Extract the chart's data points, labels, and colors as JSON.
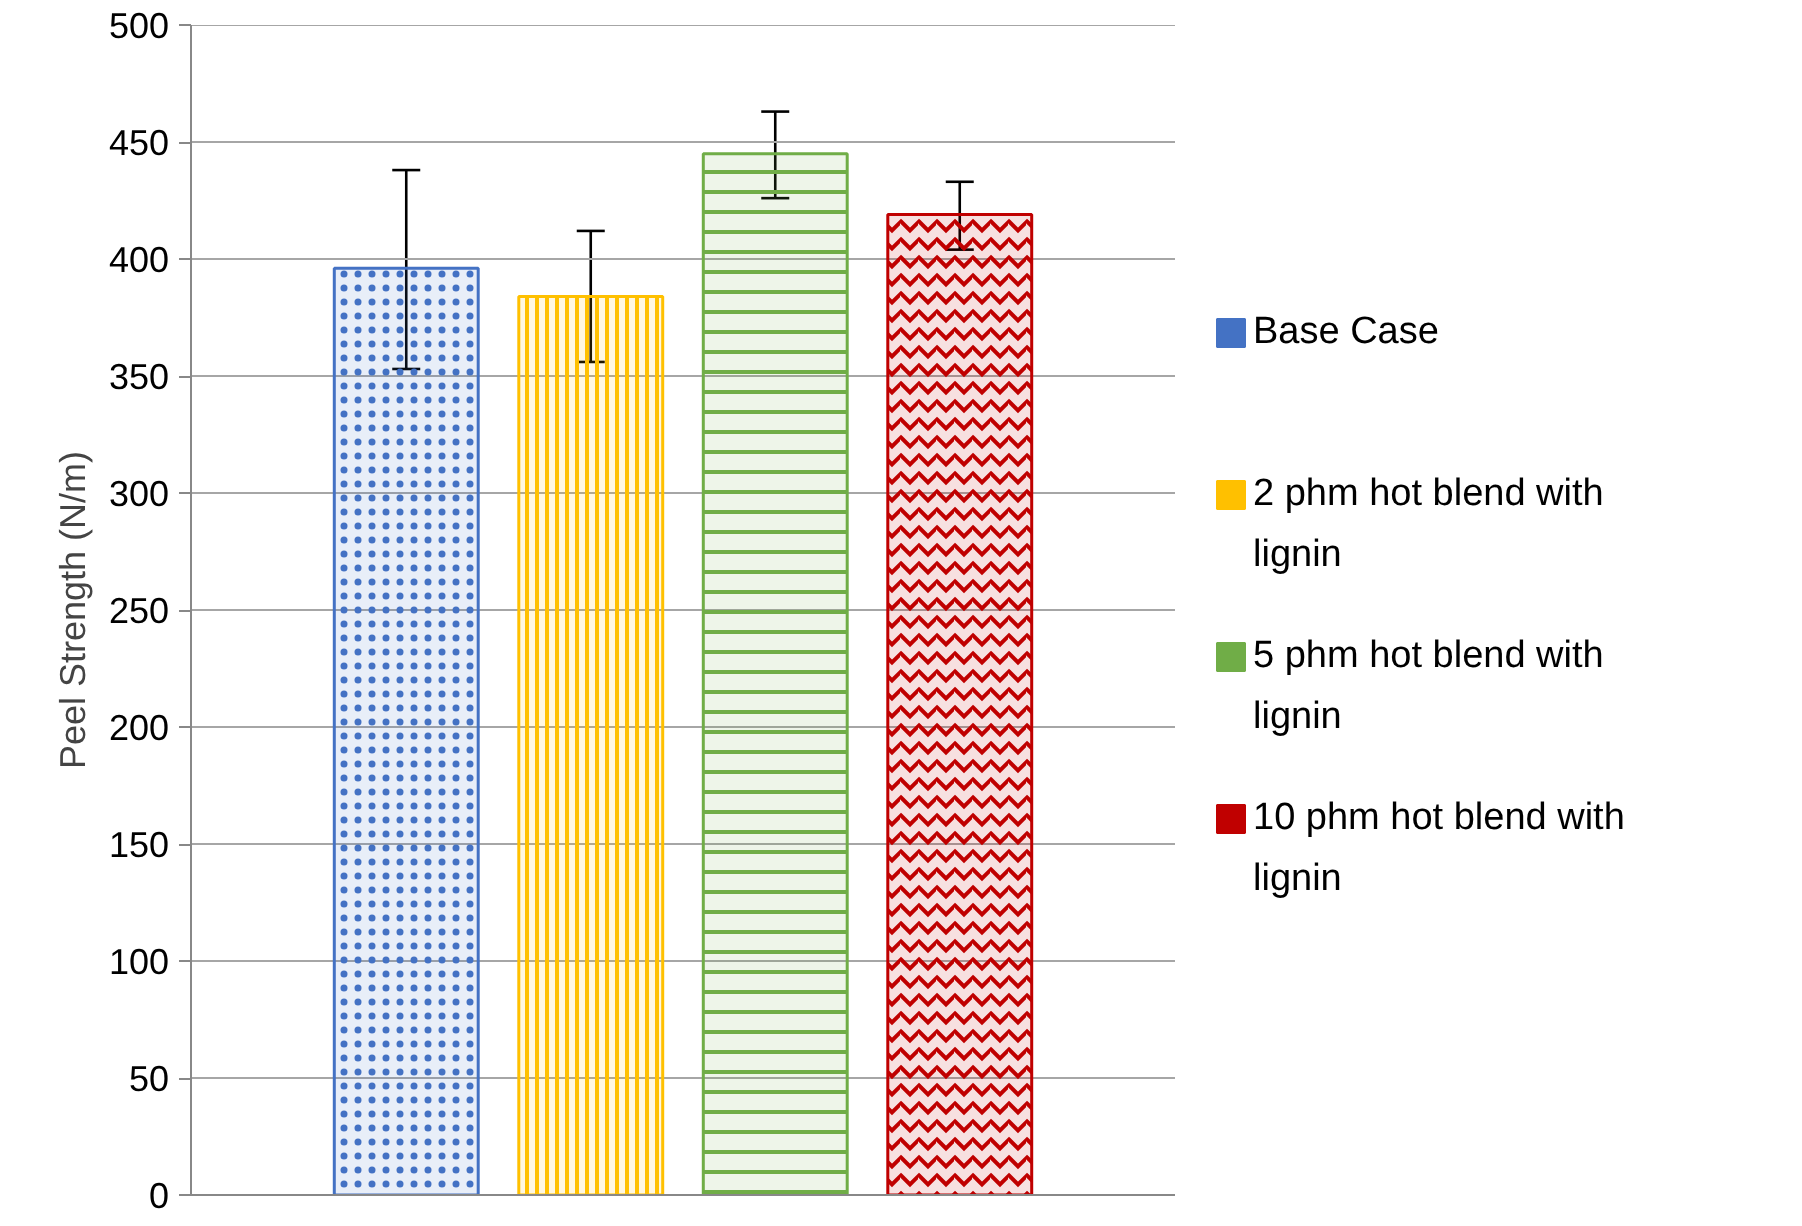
{
  "chart_data": {
    "type": "bar",
    "ylabel": "Peel Strength (N/m)",
    "categories": [
      null
    ],
    "series": [
      {
        "name": "Base Case",
        "color": "#4472c4",
        "values": [
          396
        ],
        "errors": [
          [
            353,
            438
          ]
        ]
      },
      {
        "name": "2 phm hot blend with lignin",
        "color": "#ffc000",
        "values": [
          384
        ],
        "errors": [
          [
            356,
            412
          ]
        ]
      },
      {
        "name": "5 phm hot blend with lignin",
        "color": "#70ad47",
        "values": [
          445
        ],
        "errors": [
          [
            426,
            463
          ]
        ]
      },
      {
        "name": "10 phm hot blend with lignin",
        "color": "#c00000",
        "values": [
          419
        ],
        "errors": [
          [
            404,
            433
          ]
        ]
      }
    ],
    "ylim": [
      0,
      500
    ],
    "yticks": [
      0,
      50,
      100,
      150,
      200,
      250,
      300,
      350,
      400,
      450,
      500
    ],
    "grid": "y",
    "legend": "right",
    "tick_labels": "y"
  }
}
